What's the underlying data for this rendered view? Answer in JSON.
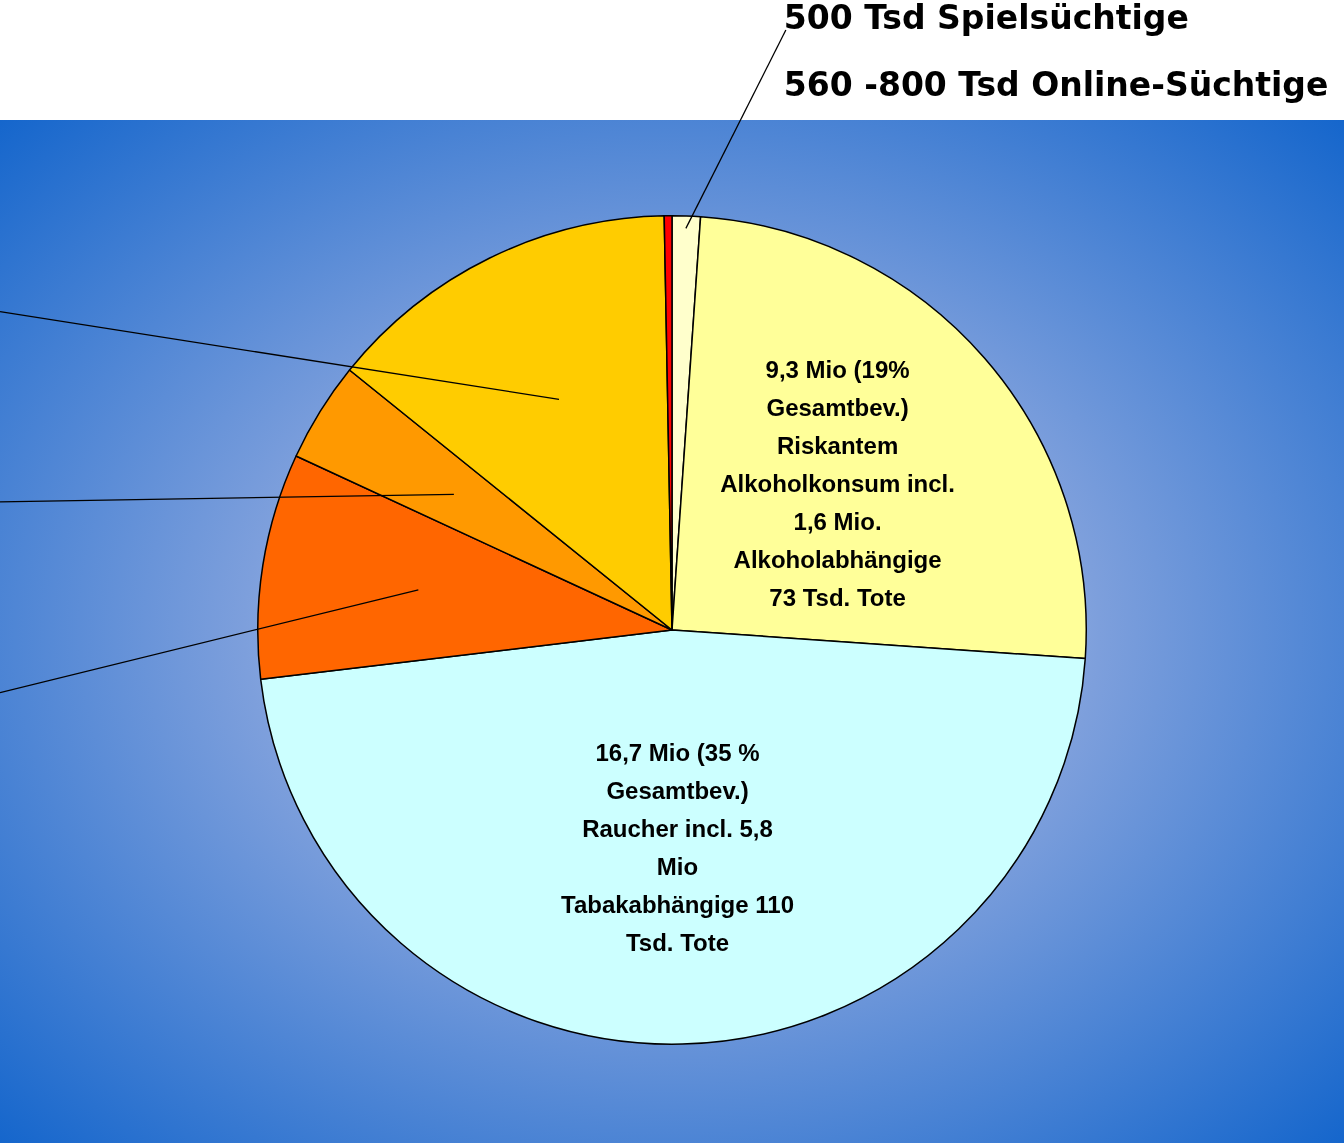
{
  "chart_data": {
    "type": "pie",
    "categories": [
      "500 Tsd Spielsüchtige",
      "9,3 Mio (19% Gesamtbev.) Riskantem Alkoholkonsum incl. 1,6 Mio. Alkoholabhängige 73 Tsd. Tote",
      "16,7 Mio (35 % Gesamtbev.) Raucher incl. 5,8 Mio Tabakabhängige 110 Tsd. Tote",
      null,
      null,
      null,
      "560 -800 Tsd Online-Süchtige"
    ],
    "values": [
      1.1,
      25,
      47,
      8.8,
      3.9,
      13.9,
      0.3
    ],
    "colors": [
      "#ffffcc",
      "#ffff99",
      "#ccffff",
      "#ff6600",
      "#ff9900",
      "#ffcc00",
      "#ff0000"
    ],
    "legend": false
  }
}
